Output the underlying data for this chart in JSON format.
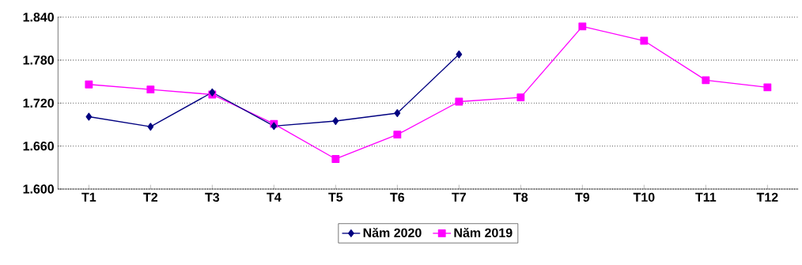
{
  "chart_data": {
    "type": "line",
    "categories": [
      "T1",
      "T2",
      "T3",
      "T4",
      "T5",
      "T6",
      "T7",
      "T8",
      "T9",
      "T10",
      "T11",
      "T12"
    ],
    "series": [
      {
        "name": "Năm 2020",
        "color": "#000080",
        "marker": "diamond",
        "values": [
          1701,
          1687,
          1735,
          1688,
          1695,
          1706,
          1788,
          null,
          null,
          null,
          null,
          null
        ]
      },
      {
        "name": "Năm 2019",
        "color": "#ff00ff",
        "marker": "square",
        "values": [
          1746,
          1739,
          1732,
          1691,
          1642,
          1676,
          1722,
          1728,
          1827,
          1807,
          1752,
          1742
        ]
      }
    ],
    "ylim": [
      1600,
      1840
    ],
    "yticks": [
      {
        "value": 1600,
        "label": "1.600"
      },
      {
        "value": 1660,
        "label": "1.660"
      },
      {
        "value": 1720,
        "label": "1.720"
      },
      {
        "value": 1780,
        "label": "1.780"
      },
      {
        "value": 1840,
        "label": "1.840"
      }
    ],
    "grid": "y",
    "legend": "bottom",
    "line_style": "solid"
  }
}
